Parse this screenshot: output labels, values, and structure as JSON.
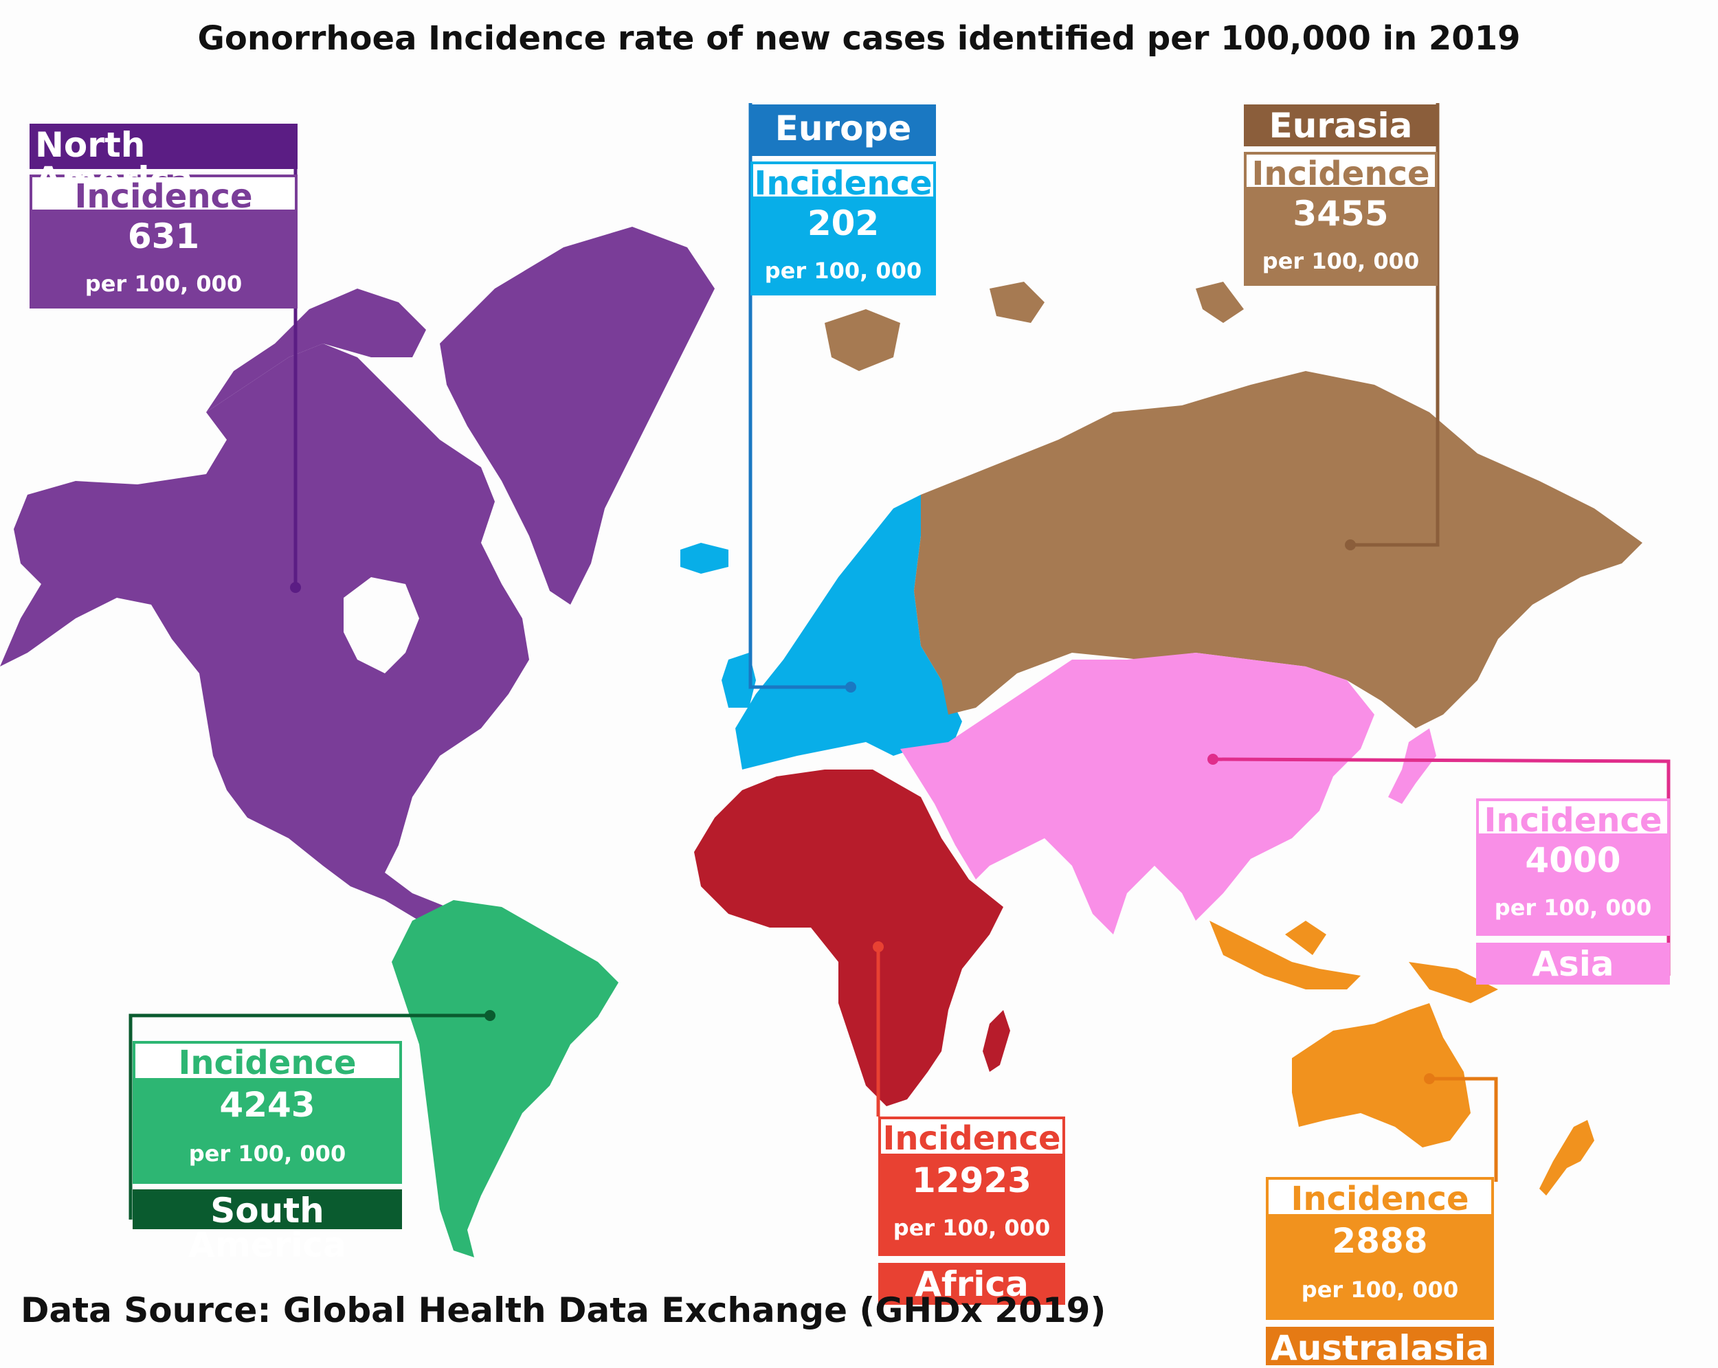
{
  "title": "Gonorrhoea Incidence rate of new cases identified per 100,000 in 2019",
  "source": "Data Source: Global Health Data Exchange (GHDx 2019)",
  "incidence_label": "Incidence",
  "per_label": "per 100, 000",
  "regions": {
    "north_america": {
      "name": "North America",
      "value": "631",
      "color": "#7a3d98",
      "dark": "#5b1d84"
    },
    "europe": {
      "name": "Europe",
      "value": "202",
      "color": "#08aee8",
      "dark": "#1a78c2"
    },
    "eurasia": {
      "name": "Eurasia",
      "value": "3455",
      "color": "#a67a52",
      "dark": "#8b5e3b"
    },
    "asia": {
      "name": "Asia",
      "value": "4000",
      "color": "#f98fe7",
      "dark": "#e02d8b"
    },
    "south_america": {
      "name": "South America",
      "value": "4243",
      "color": "#2db673",
      "dark": "#0a5b2f"
    },
    "africa": {
      "name": "Africa",
      "value": "12923",
      "color": "#b71c2b",
      "dark": "#e84132"
    },
    "australasia": {
      "name": "Australasia",
      "value": "2888",
      "color": "#f1921e",
      "dark": "#e57a14"
    }
  }
}
